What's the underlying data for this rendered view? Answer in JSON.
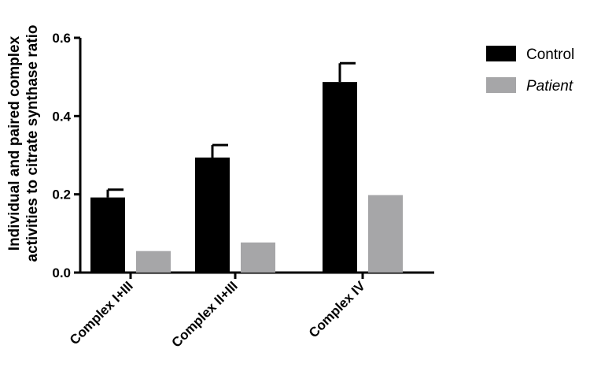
{
  "chart_data": {
    "type": "bar",
    "title": "",
    "xlabel": "",
    "ylabel_lines": [
      "Individual and paired complex",
      "activities to citrate synthase ratio"
    ],
    "categories": [
      "Complex I+III",
      "Complex II+III",
      "Complex IV"
    ],
    "ylim": [
      0,
      0.6
    ],
    "yticks": [
      0.0,
      0.2,
      0.4,
      0.6
    ],
    "ytick_labels": [
      "0.0",
      "0.2",
      "0.4",
      "0.6"
    ],
    "grid": false,
    "legend_position": "top-right",
    "series": [
      {
        "name": "Control",
        "values": [
          0.192,
          0.294,
          0.487
        ],
        "errors": [
          0.02,
          0.032,
          0.048
        ],
        "color": "#000000",
        "italic": false
      },
      {
        "name": "Patient",
        "values": [
          0.055,
          0.077,
          0.198
        ],
        "errors": [
          0,
          0,
          0
        ],
        "color": "#a6a6a8",
        "italic": true
      }
    ]
  }
}
